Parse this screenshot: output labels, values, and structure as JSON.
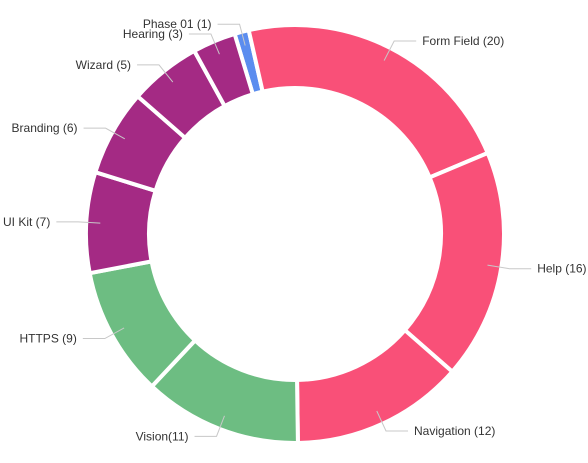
{
  "chart_data": {
    "type": "pie",
    "variant": "donut",
    "title": "",
    "legend": "none",
    "slices": [
      {
        "label": "Phase 01 (1)",
        "value": 1,
        "color": "#5b8def"
      },
      {
        "label": "Form Field (20)",
        "value": 20,
        "color": "#f95078"
      },
      {
        "label": "Help (16)",
        "value": 16,
        "color": "#f95078"
      },
      {
        "label": "Navigation (12)",
        "value": 12,
        "color": "#f95078"
      },
      {
        "label": "Vision(11)",
        "value": 11,
        "color": "#6dbd82"
      },
      {
        "label": "HTTPS (9)",
        "value": 9,
        "color": "#6dbd82"
      },
      {
        "label": "UI Kit (7)",
        "value": 7,
        "color": "#a42a84"
      },
      {
        "label": "Branding (6)",
        "value": 6,
        "color": "#a42a84"
      },
      {
        "label": "Wizard (5)",
        "value": 5,
        "color": "#a42a84"
      },
      {
        "label": "Hearing (3)",
        "value": 3,
        "color": "#a42a84"
      }
    ]
  }
}
